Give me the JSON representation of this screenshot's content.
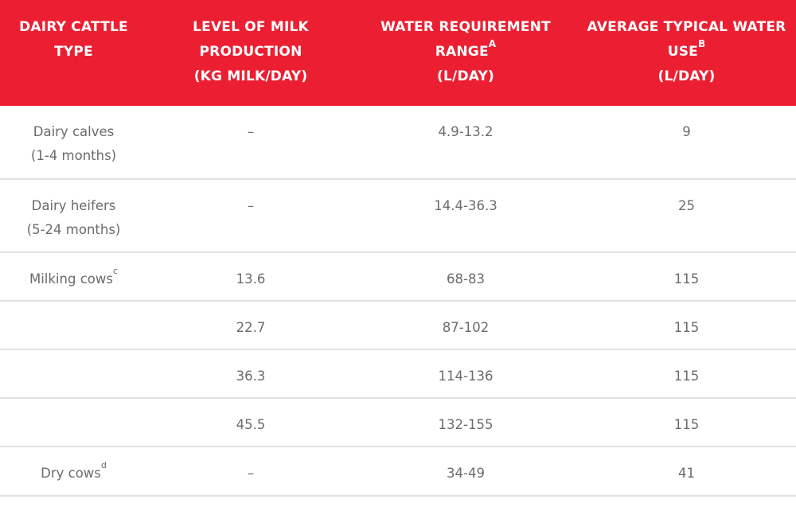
{
  "colors": {
    "header_bg": "#ec1f32",
    "header_text": "#ffffff",
    "body_text": "#6b6b6b",
    "row_divider": "#e2e2e2"
  },
  "table": {
    "headers": [
      {
        "lines": [
          "DAIRY CATTLE",
          "TYPE"
        ],
        "sup": ""
      },
      {
        "lines": [
          "LEVEL OF MILK",
          "PRODUCTION",
          "(KG MILK/DAY)"
        ],
        "sup": ""
      },
      {
        "lines": [
          "WATER REQUIREMENT",
          "RANGE",
          "(L/DAY)"
        ],
        "sup": "A",
        "sup_after_line": 1
      },
      {
        "lines": [
          "AVERAGE TYPICAL WATER",
          "USE",
          "(L/DAY)"
        ],
        "sup": "B",
        "sup_after_line": 1
      }
    ],
    "rows": [
      {
        "type_lines": [
          "Dairy calves",
          "(1-4 months)"
        ],
        "type_sup": "",
        "milk": "–",
        "range": "4.9-13.2",
        "typical": "9"
      },
      {
        "type_lines": [
          "Dairy heifers",
          "(5-24 months)"
        ],
        "type_sup": "",
        "milk": "–",
        "range": "14.4-36.3",
        "typical": "25"
      },
      {
        "type_lines": [
          "Milking cows"
        ],
        "type_sup": "c",
        "milk": "13.6",
        "range": "68-83",
        "typical": "115"
      },
      {
        "type_lines": [
          ""
        ],
        "type_sup": "",
        "milk": "22.7",
        "range": "87-102",
        "typical": "115"
      },
      {
        "type_lines": [
          ""
        ],
        "type_sup": "",
        "milk": "36.3",
        "range": "114-136",
        "typical": "115"
      },
      {
        "type_lines": [
          ""
        ],
        "type_sup": "",
        "milk": "45.5",
        "range": "132-155",
        "typical": "115"
      },
      {
        "type_lines": [
          "Dry cows"
        ],
        "type_sup": "d",
        "milk": "–",
        "range": "34-49",
        "typical": "41"
      }
    ]
  }
}
